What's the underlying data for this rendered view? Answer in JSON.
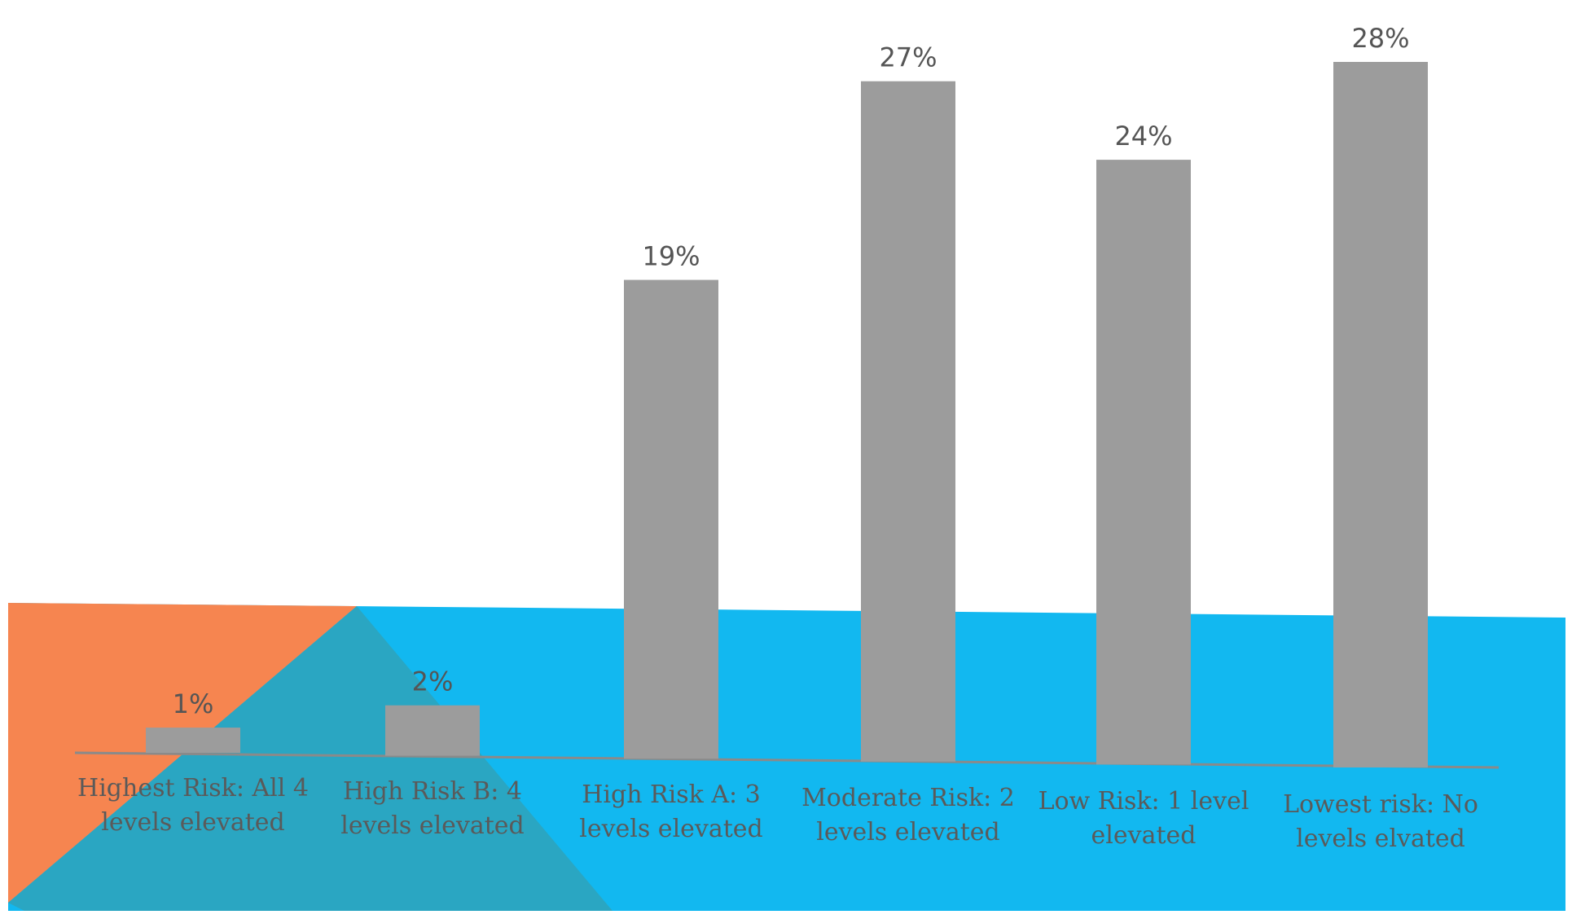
{
  "colors": {
    "bar": "#9c9c9c",
    "band_blue": "#12b8f0",
    "band_orange": "#f68550",
    "band_teal": "#2aa6c2",
    "axis": "#8a8a8a",
    "text": "#5a5a5a"
  },
  "chart_data": {
    "type": "bar",
    "title": "",
    "xlabel": "",
    "ylabel": "",
    "ylim": [
      0,
      28
    ],
    "grid": false,
    "legend": "none",
    "categories": [
      [
        "Highest Risk: All 4",
        "levels elevated"
      ],
      [
        "High Risk B: 4",
        "levels elevated"
      ],
      [
        "High Risk A: 3",
        "levels elevated"
      ],
      [
        "Moderate Risk: 2",
        "levels elevated"
      ],
      [
        "Low Risk: 1 level",
        "elevated"
      ],
      [
        "Lowest risk: No",
        "levels elvated"
      ]
    ],
    "values": [
      1,
      2,
      19,
      27,
      24,
      28
    ],
    "value_labels": [
      "1%",
      "2%",
      "19%",
      "27%",
      "24%",
      "28%"
    ]
  }
}
